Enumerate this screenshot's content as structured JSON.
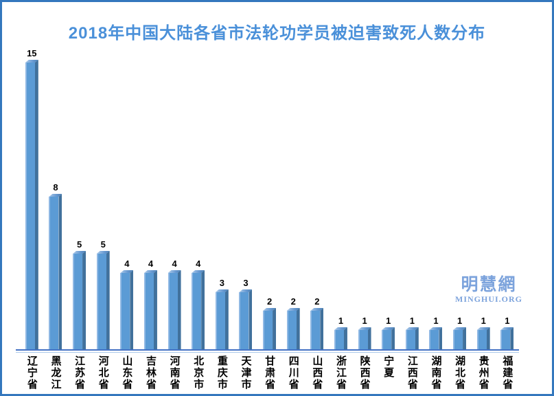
{
  "chart_data": {
    "type": "bar",
    "title": "2018年中国大陆各省市法轮功学员被迫害致死人数分布",
    "categories": [
      "辽宁省",
      "黑龙江",
      "江苏省",
      "河北省",
      "山东省",
      "吉林省",
      "河南省",
      "北京市",
      "重庆市",
      "天津市",
      "甘肃省",
      "四川省",
      "山西省",
      "浙江省",
      "陕西省",
      "宁夏",
      "江西省",
      "湖南省",
      "湖北省",
      "贵州省",
      "福建省"
    ],
    "values": [
      15,
      8,
      5,
      5,
      4,
      4,
      4,
      4,
      3,
      3,
      2,
      2,
      2,
      1,
      1,
      1,
      1,
      1,
      1,
      1,
      1
    ],
    "xlabel": "",
    "ylabel": "",
    "ylim": [
      0,
      15
    ],
    "grid": false,
    "legend": false,
    "value_labels_shown": true,
    "bar_style": "3d",
    "x_label_orientation": "vertical-upright"
  },
  "title": {
    "text": "2018年中国大陆各省市法轮功学员被迫害致死人数分布"
  },
  "watermark": {
    "cjk": "明慧網",
    "latin": "MINGHUI.ORG"
  },
  "colors": {
    "background": "#FFFFFF",
    "frame": "#3477BD",
    "title": "#4A90D9",
    "bar_face": "#5B9BD5",
    "bar_side": "#41719C",
    "bar_cap_light": "#AECBEA",
    "axis_line": "#4472C4",
    "value_label": "#000000",
    "category_label": "#000000",
    "watermark": "#7CA3DC"
  }
}
